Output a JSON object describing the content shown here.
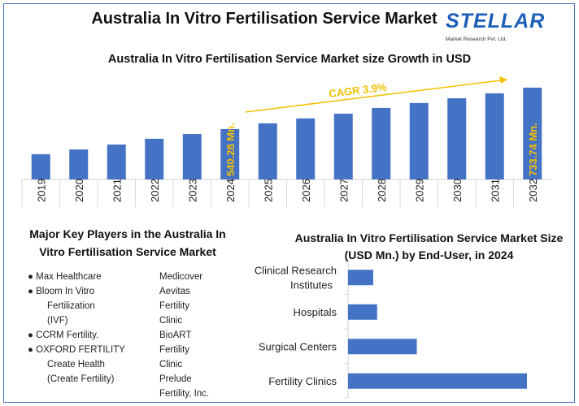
{
  "title": "Australia In Vitro Fertilisation Service Market",
  "logo": {
    "word": "STELLAR",
    "tagline": "Market Research Pvt. Ltd."
  },
  "chart_data": [
    {
      "type": "bar",
      "title": "Australia In Vitro Fertilisation Service Market size Growth in USD",
      "categories": [
        "2019",
        "2020",
        "2021",
        "2022",
        "2023",
        "2024",
        "2025",
        "2026",
        "2027",
        "2028",
        "2029",
        "2030",
        "2031",
        "2032"
      ],
      "values": [
        423,
        445,
        468,
        495,
        517,
        540.28,
        567,
        590,
        612,
        639,
        662,
        684,
        707,
        733.74
      ],
      "ylim": [
        305,
        760
      ],
      "data_labels": {
        "2024": "540.28 Mn.",
        "2032": "733.74 Mn."
      },
      "annotation": "CAGR 3.9%",
      "bar_color": "#4472c4",
      "label_color": "#f5c000",
      "grid": false
    },
    {
      "type": "bar",
      "orientation": "horizontal",
      "title": "Australia In Vitro Fertilisation Service Market Size (USD Mn.) by End-User, in 2024",
      "categories": [
        "Clinical Research Institutes",
        "Hospitals",
        "Surgical Centers",
        "Fertility Clinics"
      ],
      "category_lines": [
        [
          "Clinical Research",
          "Institutes"
        ],
        [
          "Hospitals"
        ],
        [
          "Surgical Centers"
        ],
        [
          "Fertility Clinics"
        ]
      ],
      "values": [
        45,
        52,
        123,
        320
      ],
      "bar_color": "#4472c4",
      "grid": false
    }
  ],
  "key_players": {
    "title_lines": [
      "Major Key Players in the Australia In",
      "Vitro Fertilisation Service Market"
    ],
    "col1": [
      {
        "text": "Max Healthcare",
        "bullet": true
      },
      {
        "text": "Bloom In Vitro",
        "bullet": true
      },
      {
        "text": "Fertilization",
        "bullet": false
      },
      {
        "text": "(IVF)",
        "bullet": false
      },
      {
        "text": "CCRM Fertility.",
        "bullet": true
      },
      {
        "text": "OXFORD FERTILITY",
        "bullet": true
      },
      {
        "text": "Create Health",
        "bullet": false
      },
      {
        "text": "(Create Fertility)",
        "bullet": false
      }
    ],
    "col2": [
      "Medicover",
      "Aevitas",
      "Fertility",
      "Clinic",
      "BioART",
      "Fertility",
      "Clinic",
      "Prelude",
      "Fertility, Inc."
    ]
  }
}
